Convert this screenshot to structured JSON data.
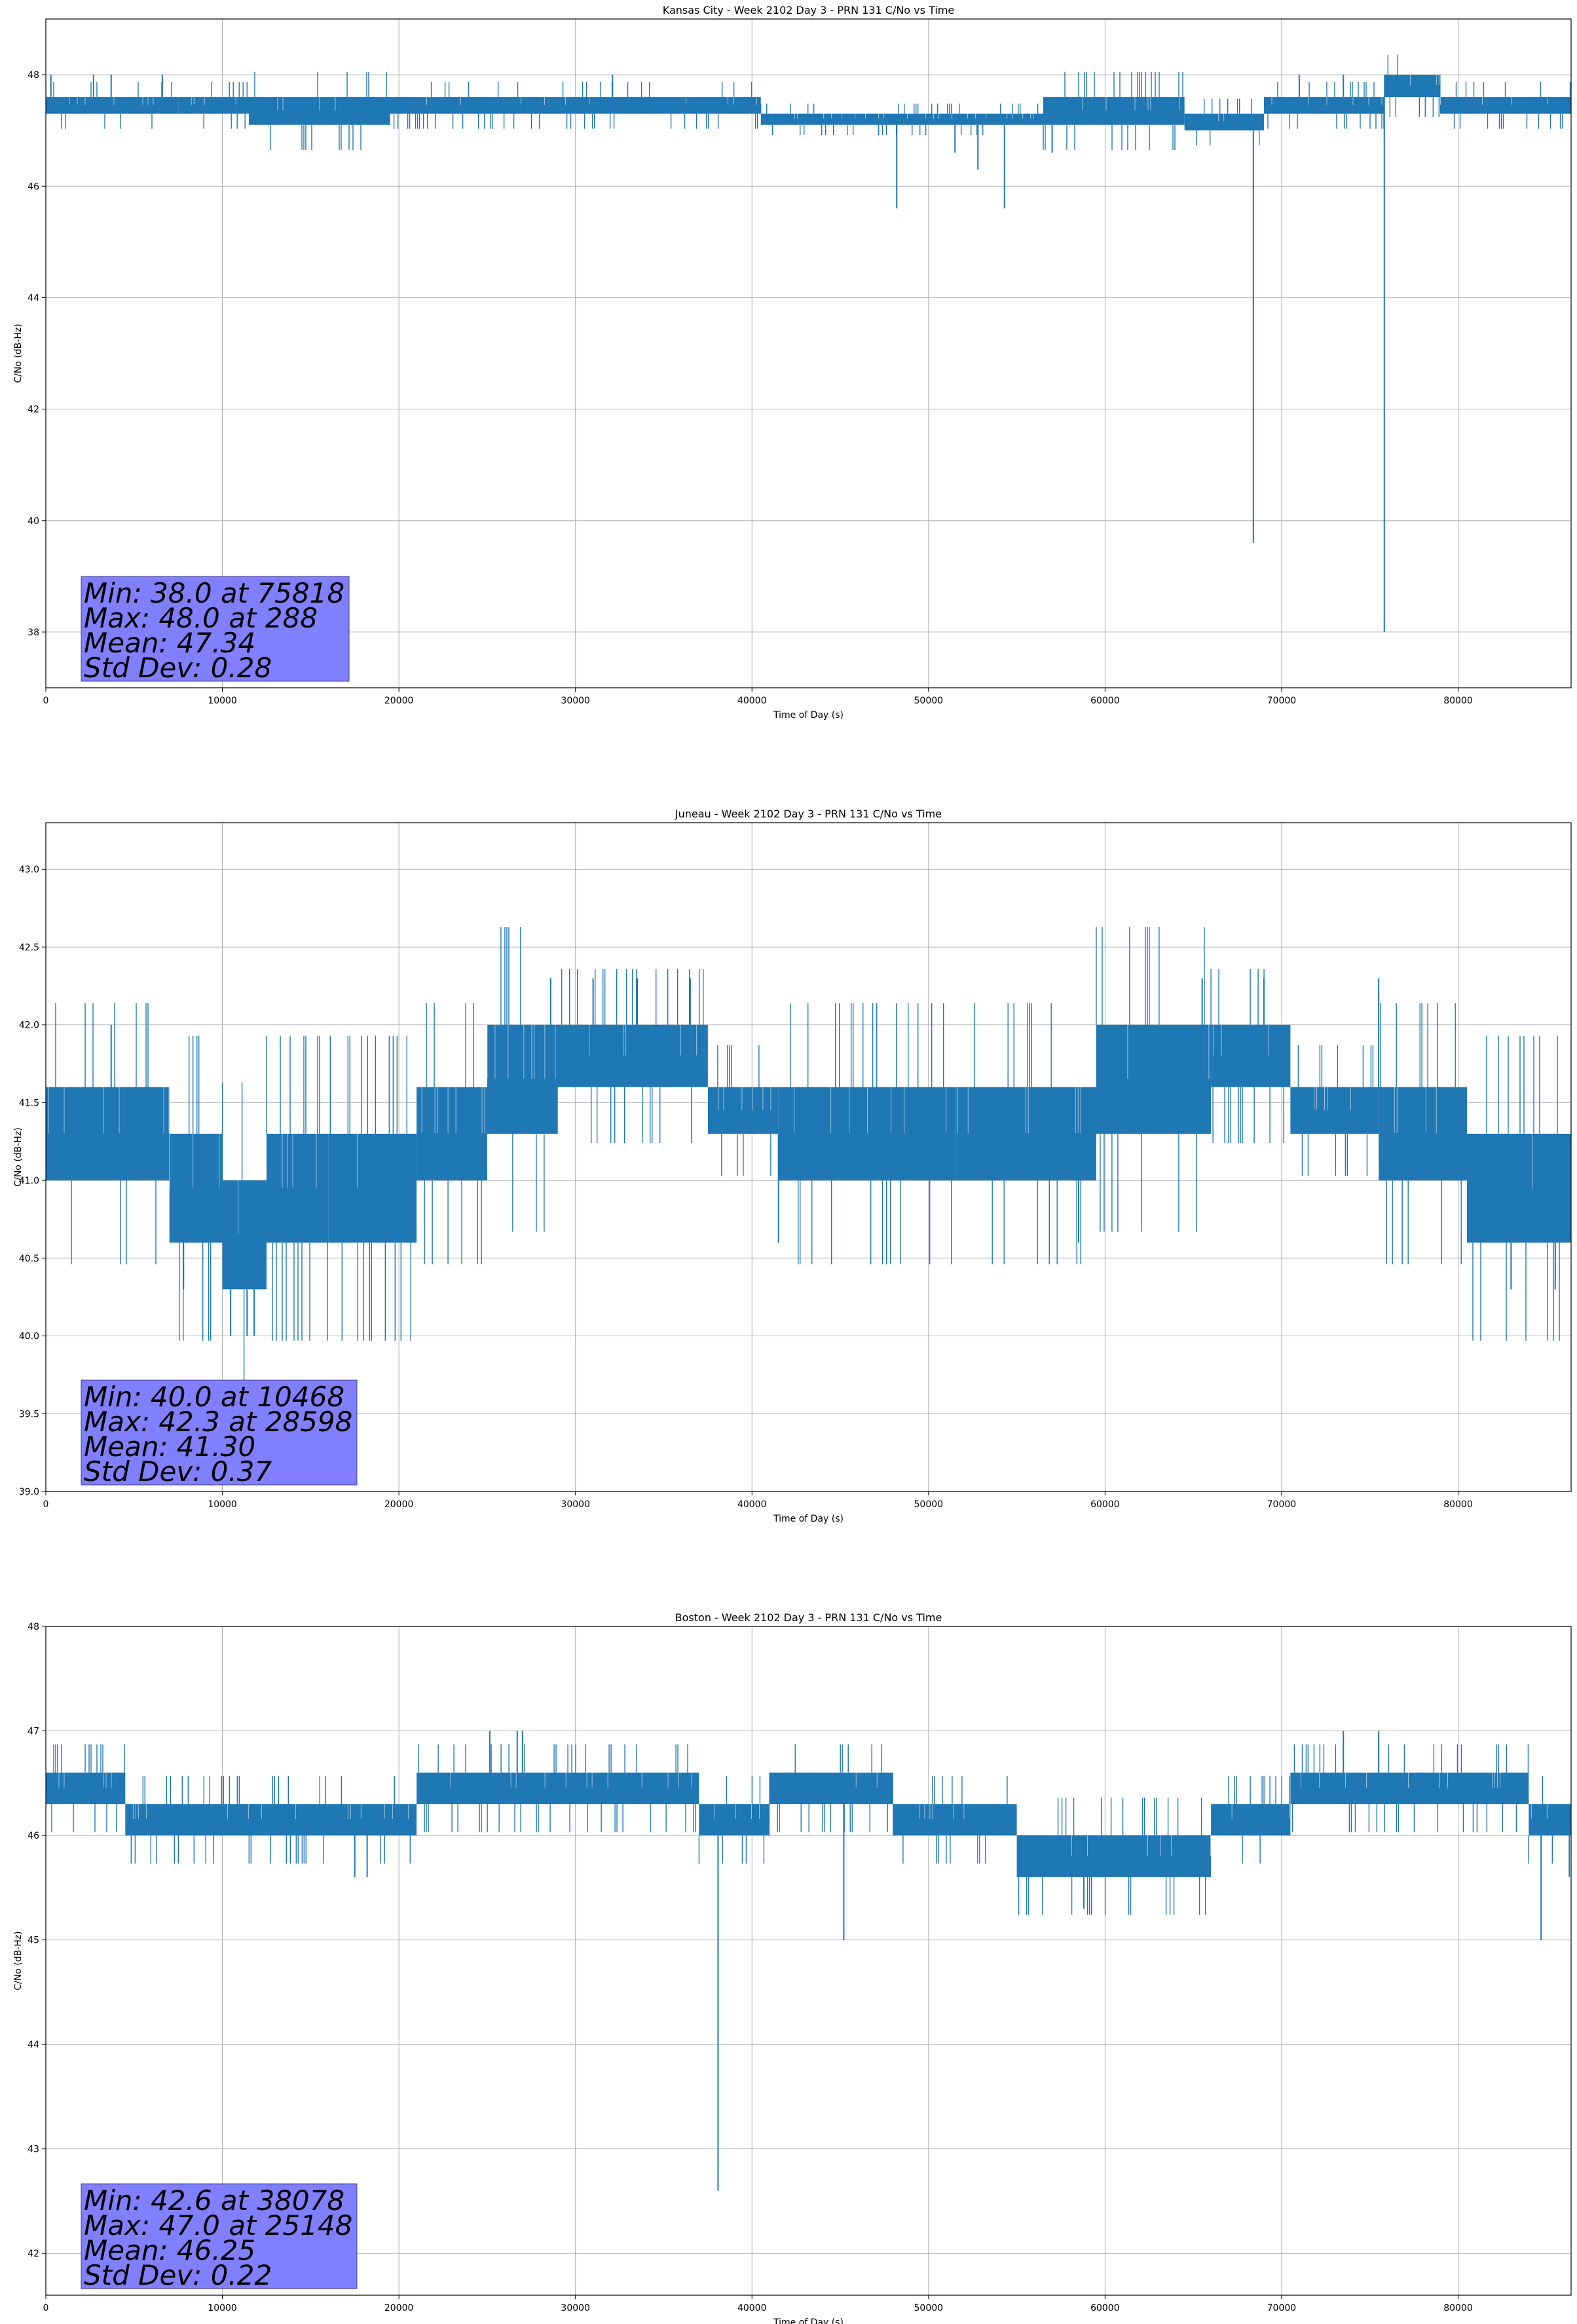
{
  "chart_data": [
    {
      "type": "line",
      "title": "Kansas City - Week 2102 Day 3 - PRN 131 C/No vs Time",
      "xlabel": "Time of Day (s)",
      "ylabel": "C/No (dB-Hz)",
      "xlim": [
        0,
        86400
      ],
      "ylim": [
        37.0,
        49.0
      ],
      "xticks": [
        0,
        10000,
        20000,
        30000,
        40000,
        50000,
        60000,
        70000,
        80000
      ],
      "yticks": [
        38,
        40,
        42,
        44,
        46,
        48
      ],
      "ytick_decimals": 0,
      "grid": true,
      "line_color": "#1f77b4",
      "band_segments": [
        {
          "x0": 0,
          "x1": 7500,
          "low": 47.3,
          "high": 47.6
        },
        {
          "x0": 7500,
          "x1": 11500,
          "low": 47.3,
          "high": 47.6
        },
        {
          "x0": 11500,
          "x1": 19500,
          "low": 47.1,
          "high": 47.6
        },
        {
          "x0": 19500,
          "x1": 40500,
          "low": 47.3,
          "high": 47.6
        },
        {
          "x0": 40500,
          "x1": 56500,
          "low": 47.1,
          "high": 47.3
        },
        {
          "x0": 56500,
          "x1": 64500,
          "low": 47.1,
          "high": 47.6
        },
        {
          "x0": 64500,
          "x1": 69000,
          "low": 47.0,
          "high": 47.3
        },
        {
          "x0": 69000,
          "x1": 75800,
          "low": 47.3,
          "high": 47.6
        },
        {
          "x0": 75800,
          "x1": 79000,
          "low": 47.6,
          "high": 48.0
        },
        {
          "x0": 79000,
          "x1": 86400,
          "low": 47.3,
          "high": 47.6
        }
      ],
      "spikes": [
        {
          "x": 288,
          "y": 48.0
        },
        {
          "x": 2700,
          "y": 48.0
        },
        {
          "x": 3700,
          "y": 48.0
        },
        {
          "x": 6600,
          "y": 48.0
        },
        {
          "x": 32100,
          "y": 48.0
        },
        {
          "x": 48200,
          "y": 45.6
        },
        {
          "x": 51500,
          "y": 46.6
        },
        {
          "x": 52800,
          "y": 46.3
        },
        {
          "x": 54300,
          "y": 45.6
        },
        {
          "x": 57000,
          "y": 46.6
        },
        {
          "x": 68400,
          "y": 39.6
        },
        {
          "x": 71000,
          "y": 48.0
        },
        {
          "x": 75818,
          "y": 38.0
        },
        {
          "x": 73500,
          "y": 48.0
        }
      ],
      "stats": {
        "min": "Min: 38.0 at 75818",
        "max": "Max: 48.0 at 288",
        "mean": "Mean: 47.34",
        "std": "Std Dev: 0.28"
      }
    },
    {
      "type": "line",
      "title": "Juneau - Week 2102 Day 3 - PRN 131 C/No vs Time",
      "xlabel": "Time of Day (s)",
      "ylabel": "C/No (dB-Hz)",
      "xlim": [
        0,
        86400
      ],
      "ylim": [
        39.0,
        43.3
      ],
      "xticks": [
        0,
        10000,
        20000,
        30000,
        40000,
        50000,
        60000,
        70000,
        80000
      ],
      "yticks": [
        39.0,
        39.5,
        40.0,
        40.5,
        41.0,
        41.5,
        42.0,
        42.5,
        43.0
      ],
      "ytick_decimals": 1,
      "grid": true,
      "line_color": "#1f77b4",
      "band_segments": [
        {
          "x0": 0,
          "x1": 7000,
          "low": 41.0,
          "high": 41.6
        },
        {
          "x0": 7000,
          "x1": 10000,
          "low": 40.6,
          "high": 41.3
        },
        {
          "x0": 10000,
          "x1": 12500,
          "low": 40.3,
          "high": 41.0
        },
        {
          "x0": 12500,
          "x1": 16000,
          "low": 40.6,
          "high": 41.3
        },
        {
          "x0": 16000,
          "x1": 21000,
          "low": 40.6,
          "high": 41.3
        },
        {
          "x0": 21000,
          "x1": 25000,
          "low": 41.0,
          "high": 41.6
        },
        {
          "x0": 25000,
          "x1": 29000,
          "low": 41.3,
          "high": 42.0
        },
        {
          "x0": 29000,
          "x1": 37500,
          "low": 41.6,
          "high": 42.0
        },
        {
          "x0": 37500,
          "x1": 41500,
          "low": 41.3,
          "high": 41.6
        },
        {
          "x0": 41500,
          "x1": 51500,
          "low": 41.0,
          "high": 41.6
        },
        {
          "x0": 51500,
          "x1": 59500,
          "low": 41.0,
          "high": 41.6
        },
        {
          "x0": 59500,
          "x1": 66000,
          "low": 41.3,
          "high": 42.0
        },
        {
          "x0": 66000,
          "x1": 70500,
          "low": 41.6,
          "high": 42.0
        },
        {
          "x0": 70500,
          "x1": 75500,
          "low": 41.3,
          "high": 41.6
        },
        {
          "x0": 75500,
          "x1": 80500,
          "low": 41.0,
          "high": 41.6
        },
        {
          "x0": 80500,
          "x1": 86400,
          "low": 40.6,
          "high": 41.3
        }
      ],
      "spikes": [
        {
          "x": 3700,
          "y": 42.0
        },
        {
          "x": 10468,
          "y": 40.0
        },
        {
          "x": 11400,
          "y": 40.0
        },
        {
          "x": 11800,
          "y": 40.0
        },
        {
          "x": 7800,
          "y": 40.3
        },
        {
          "x": 28598,
          "y": 42.3
        },
        {
          "x": 31000,
          "y": 42.3
        },
        {
          "x": 33500,
          "y": 42.3
        },
        {
          "x": 36500,
          "y": 42.3
        },
        {
          "x": 65500,
          "y": 42.3
        },
        {
          "x": 69000,
          "y": 42.3
        },
        {
          "x": 75500,
          "y": 42.3
        },
        {
          "x": 83000,
          "y": 40.3
        },
        {
          "x": 85500,
          "y": 40.3
        },
        {
          "x": 41500,
          "y": 40.6
        },
        {
          "x": 58500,
          "y": 40.6
        }
      ],
      "stats": {
        "min": "Min: 40.0 at 10468",
        "max": "Max: 42.3 at 28598",
        "mean": "Mean: 41.30",
        "std": "Std Dev: 0.37"
      }
    },
    {
      "type": "line",
      "title": "Boston - Week 2102 Day 3 - PRN 131 C/No vs Time",
      "xlabel": "Time of Day (s)",
      "ylabel": "C/No (dB-Hz)",
      "xlim": [
        0,
        86400
      ],
      "ylim": [
        41.6,
        48.0
      ],
      "xticks": [
        0,
        10000,
        20000,
        30000,
        40000,
        50000,
        60000,
        70000,
        80000
      ],
      "yticks": [
        42,
        43,
        44,
        45,
        46,
        47,
        48
      ],
      "ytick_decimals": 0,
      "grid": true,
      "line_color": "#1f77b4",
      "band_segments": [
        {
          "x0": 0,
          "x1": 4500,
          "low": 46.3,
          "high": 46.6
        },
        {
          "x0": 4500,
          "x1": 21000,
          "low": 46.0,
          "high": 46.3
        },
        {
          "x0": 21000,
          "x1": 37000,
          "low": 46.3,
          "high": 46.6
        },
        {
          "x0": 37000,
          "x1": 41000,
          "low": 46.0,
          "high": 46.3
        },
        {
          "x0": 41000,
          "x1": 48000,
          "low": 46.3,
          "high": 46.6
        },
        {
          "x0": 48000,
          "x1": 55000,
          "low": 46.0,
          "high": 46.3
        },
        {
          "x0": 55000,
          "x1": 66000,
          "low": 45.6,
          "high": 46.0
        },
        {
          "x0": 66000,
          "x1": 70500,
          "low": 46.0,
          "high": 46.3
        },
        {
          "x0": 70500,
          "x1": 84000,
          "low": 46.3,
          "high": 46.6
        },
        {
          "x0": 84000,
          "x1": 86400,
          "low": 46.0,
          "high": 46.3
        }
      ],
      "spikes": [
        {
          "x": 25148,
          "y": 47.0
        },
        {
          "x": 26700,
          "y": 47.0
        },
        {
          "x": 27000,
          "y": 47.0
        },
        {
          "x": 73500,
          "y": 47.0
        },
        {
          "x": 75500,
          "y": 47.0
        },
        {
          "x": 38078,
          "y": 42.6
        },
        {
          "x": 45200,
          "y": 45.0
        },
        {
          "x": 58800,
          "y": 45.3
        },
        {
          "x": 17500,
          "y": 45.6
        },
        {
          "x": 18200,
          "y": 45.6
        },
        {
          "x": 84700,
          "y": 45.0
        },
        {
          "x": 86300,
          "y": 45.6
        }
      ],
      "stats": {
        "min": "Min: 42.6 at 38078",
        "max": "Max: 47.0 at 25148",
        "mean": "Mean: 46.25",
        "std": "Std Dev: 0.22"
      }
    }
  ]
}
